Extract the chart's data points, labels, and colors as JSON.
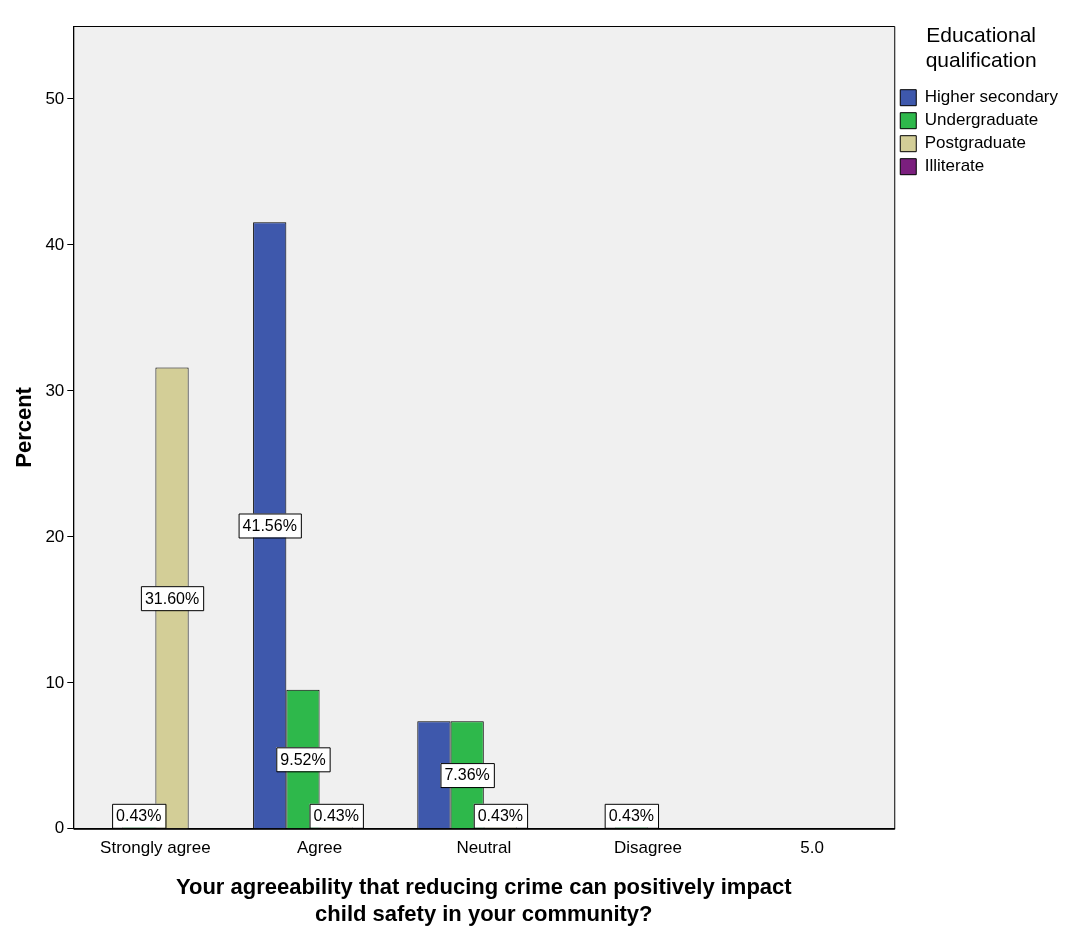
{
  "chart_data": {
    "type": "bar",
    "xlabel": "Your agreeability that reducing crime can positively impact child safety in your community?",
    "ylabel": "Percent",
    "legend_title": "Educational qualification",
    "categories": [
      "Strongly agree",
      "Agree",
      "Neutral",
      "Disagree",
      "5.0"
    ],
    "series": [
      {
        "name": "Higher secondary",
        "color": "#3e58ac",
        "values": [
          null,
          41.56,
          7.36,
          null,
          null
        ],
        "value_labels": [
          null,
          "41.56%",
          null,
          null,
          null
        ]
      },
      {
        "name": "Undergraduate",
        "color": "#2eb84b",
        "values": [
          0.43,
          9.52,
          7.36,
          0.43,
          null
        ],
        "value_labels": [
          "0.43%",
          "9.52%",
          "7.36%",
          "0.43%",
          null
        ]
      },
      {
        "name": "Postgraduate",
        "color": "#d3ce97",
        "values": [
          31.6,
          0.43,
          0.43,
          null,
          null
        ],
        "value_labels": [
          "31.60%",
          "0.43%",
          "0.43%",
          null,
          null
        ]
      },
      {
        "name": "Illiterate",
        "color": "#7b1f7e",
        "values": [
          null,
          null,
          null,
          null,
          null
        ]
      }
    ],
    "ylim": [
      0,
      55
    ],
    "yticks": [
      0,
      10,
      20,
      30,
      40,
      50
    ],
    "grid": false,
    "legend": "top right"
  }
}
